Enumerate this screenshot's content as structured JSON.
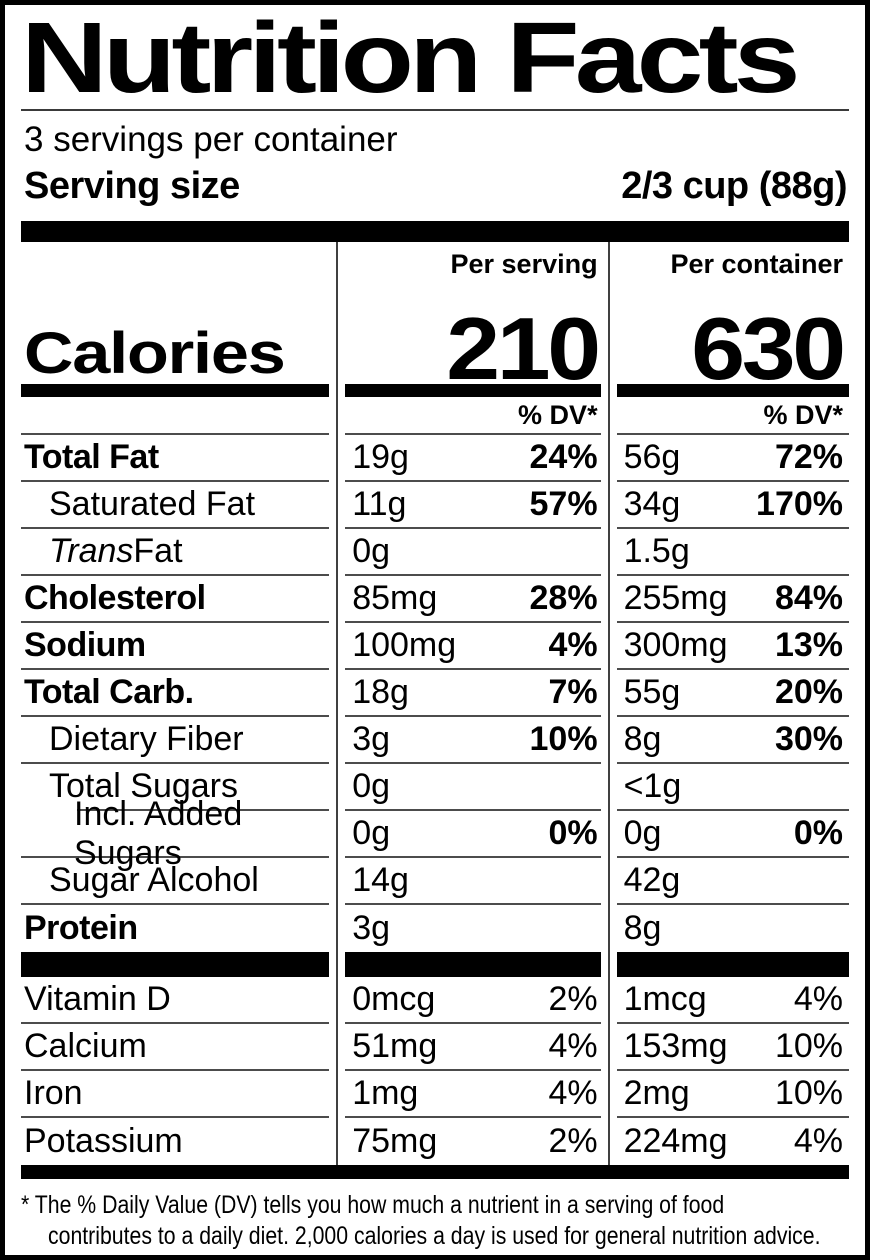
{
  "header": {
    "title": "Nutrition Facts",
    "servings_per_container": "3 servings per container",
    "serving_size_label": "Serving size",
    "serving_size_value": "2/3 cup (88g)"
  },
  "calories": {
    "label": "Calories",
    "col_serving_header": "Per serving",
    "col_container_header": "Per container",
    "per_serving": "210",
    "per_container": "630",
    "dv_header": "% DV*"
  },
  "nutrients": [
    {
      "name": "Total Fat",
      "s_amt": "19g",
      "s_dv": "24%",
      "c_amt": "56g",
      "c_dv": "72%"
    },
    {
      "name": "Saturated Fat",
      "s_amt": "11g",
      "s_dv": "57%",
      "c_amt": "34g",
      "c_dv": "170%"
    },
    {
      "name_italic": "Trans",
      "name_rest": " Fat",
      "s_amt": "0g",
      "s_dv": "",
      "c_amt": "1.5g",
      "c_dv": ""
    },
    {
      "name": "Cholesterol",
      "s_amt": "85mg",
      "s_dv": "28%",
      "c_amt": "255mg",
      "c_dv": "84%"
    },
    {
      "name": "Sodium",
      "s_amt": "100mg",
      "s_dv": "4%",
      "c_amt": "300mg",
      "c_dv": "13%"
    },
    {
      "name": "Total Carb.",
      "s_amt": "18g",
      "s_dv": "7%",
      "c_amt": "55g",
      "c_dv": "20%"
    },
    {
      "name": "Dietary Fiber",
      "s_amt": "3g",
      "s_dv": "10%",
      "c_amt": "8g",
      "c_dv": "30%"
    },
    {
      "name": "Total Sugars",
      "s_amt": "0g",
      "s_dv": "",
      "c_amt": "<1g",
      "c_dv": ""
    },
    {
      "name": "Incl. Added Sugars",
      "s_amt": "0g",
      "s_dv": "0%",
      "c_amt": "0g",
      "c_dv": "0%"
    },
    {
      "name": "Sugar Alcohol",
      "s_amt": "14g",
      "s_dv": "",
      "c_amt": "42g",
      "c_dv": ""
    },
    {
      "name": "Protein",
      "s_amt": "3g",
      "s_dv": "",
      "c_amt": "8g",
      "c_dv": ""
    }
  ],
  "micronutrients": [
    {
      "name": "Vitamin D",
      "s_amt": "0mcg",
      "s_dv": "2%",
      "c_amt": "1mcg",
      "c_dv": "4%"
    },
    {
      "name": "Calcium",
      "s_amt": "51mg",
      "s_dv": "4%",
      "c_amt": "153mg",
      "c_dv": "10%"
    },
    {
      "name": "Iron",
      "s_amt": "1mg",
      "s_dv": "4%",
      "c_amt": "2mg",
      "c_dv": "10%"
    },
    {
      "name": "Potassium",
      "s_amt": "75mg",
      "s_dv": "2%",
      "c_amt": "224mg",
      "c_dv": "4%"
    }
  ],
  "footnote": {
    "line1": "* The % Daily Value (DV) tells you how much a nutrient in a serving of food",
    "line2": "contributes to a daily diet. 2,000 calories a day is used for general nutrition advice."
  },
  "colors": {
    "ink": "#000000",
    "paper": "#ffffff",
    "hairline": "#4c4c4c"
  }
}
